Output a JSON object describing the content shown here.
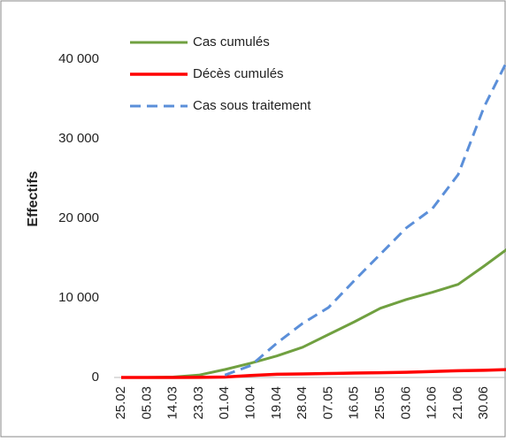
{
  "chart_data": {
    "type": "line",
    "ylabel": "Effectifs",
    "categories": [
      "25.02",
      "05.03",
      "14.03",
      "23.03",
      "01.04",
      "10.04",
      "19.04",
      "28.04",
      "07.05",
      "16.05",
      "25.05",
      "03.06",
      "12.06",
      "21.06",
      "30.06",
      null
    ],
    "series": [
      {
        "name": "Cas cumulés",
        "color": "#70a040",
        "dash": false,
        "values": [
          0,
          0,
          50,
          300,
          1000,
          1800,
          2700,
          3800,
          5400,
          7000,
          8700,
          9800,
          10700,
          11700,
          14000,
          16400
        ]
      },
      {
        "name": "Décès cumulés",
        "color": "#ff0000",
        "dash": false,
        "values": [
          0,
          0,
          0,
          10,
          50,
          250,
          400,
          450,
          500,
          550,
          600,
          650,
          750,
          850,
          900,
          1000
        ]
      },
      {
        "name": "Cas sous traitement",
        "color": "#5b8fd9",
        "dash": true,
        "values": [
          null,
          null,
          null,
          null,
          300,
          1500,
          4300,
          6800,
          8800,
          12200,
          15500,
          18800,
          21200,
          25500,
          34000,
          40500
        ]
      }
    ],
    "ylim": [
      0,
      45000
    ],
    "yticks": [
      0,
      {
        "value": 10000,
        "label": "10 000"
      },
      {
        "value": 20000,
        "label": "20 000"
      },
      {
        "value": 30000,
        "label": "30 000"
      },
      {
        "value": 40000,
        "label": "40 000"
      }
    ],
    "grid": false,
    "legend": "top-left"
  }
}
